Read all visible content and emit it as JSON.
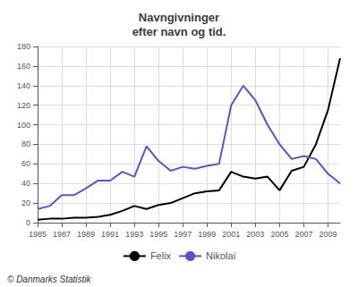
{
  "chart_data": {
    "type": "line",
    "title": "Navngivninger\nefter navn og tid.",
    "x": [
      1985,
      1986,
      1987,
      1988,
      1989,
      1990,
      1991,
      1992,
      1993,
      1994,
      1995,
      1996,
      1997,
      1998,
      1999,
      2000,
      2001,
      2002,
      2003,
      2004,
      2005,
      2006,
      2007,
      2008,
      2009,
      2010
    ],
    "series": [
      {
        "name": "Felix",
        "color": "#000000",
        "values": [
          3,
          4,
          4,
          5,
          5,
          6,
          8,
          12,
          17,
          14,
          18,
          20,
          25,
          30,
          32,
          33,
          52,
          47,
          45,
          47,
          33,
          53,
          57,
          80,
          115,
          168
        ]
      },
      {
        "name": "Nikolai",
        "color": "#5555cc",
        "values": [
          14,
          17,
          28,
          28,
          35,
          43,
          43,
          52,
          47,
          78,
          63,
          53,
          57,
          55,
          58,
          60,
          120,
          140,
          125,
          100,
          80,
          65,
          68,
          65,
          50,
          40
        ]
      }
    ],
    "xlim": [
      1985,
      2010
    ],
    "xticks": [
      1985,
      1987,
      1989,
      1991,
      1993,
      1995,
      1997,
      1999,
      2001,
      2003,
      2005,
      2007,
      2009
    ],
    "ylim": [
      0,
      180
    ],
    "yticks": [
      0,
      20,
      40,
      60,
      80,
      100,
      120,
      140,
      160,
      180
    ],
    "grid": true,
    "legend": "bottom",
    "annotations": [
      "© Danmarks Statistik"
    ]
  }
}
